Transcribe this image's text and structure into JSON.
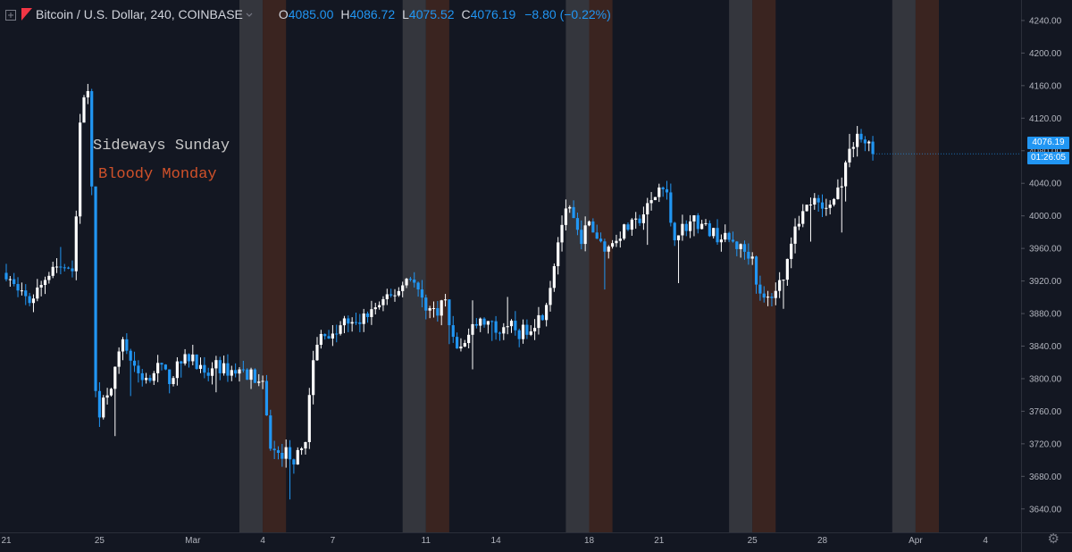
{
  "header": {
    "symbol": "Bitcoin / U.S. Dollar, 240, COINBASE",
    "open_label": "O",
    "open": "4085.00",
    "high_label": "H",
    "high": "4086.72",
    "low_label": "L",
    "low": "4075.52",
    "close_label": "C",
    "close": "4076.19",
    "change": "−8.80 (−0.22%)"
  },
  "price_badge": {
    "price": "4076.19",
    "countdown": "01:26:05"
  },
  "annotations": {
    "sunday": {
      "text": "Sideways Sunday",
      "color": "#c8c8c8"
    },
    "monday": {
      "text": "Bloody Monday",
      "color": "#d0512a"
    }
  },
  "colors": {
    "background": "#131722",
    "up_candle": "#ffffff",
    "down_candle": "#2196f3",
    "sunday_band": "#34363d",
    "monday_band": "#3a2420",
    "axis_text": "#b2b5be"
  },
  "chart_data": {
    "type": "candlestick",
    "title": "Bitcoin / U.S. Dollar, 240, COINBASE",
    "y_ticks": [
      3640,
      3680,
      3720,
      3760,
      3800,
      3840,
      3880,
      3920,
      3960,
      4000,
      4040,
      4080,
      4120,
      4160,
      4200,
      4240
    ],
    "y_tick_labels": [
      "3640.00",
      "3680.00",
      "3720.00",
      "3760.00",
      "3800.00",
      "3840.00",
      "3880.00",
      "3920.00",
      "3960.00",
      "4000.00",
      "4040.00",
      "4080.00",
      "4120.00",
      "4160.00",
      "4200.00",
      "4240.00"
    ],
    "ylim": [
      3620,
      4252
    ],
    "x_range_days": [
      0,
      45
    ],
    "x_ticks": [
      {
        "day": 0,
        "label": "21"
      },
      {
        "day": 4,
        "label": "25"
      },
      {
        "day": 8,
        "label": "Mar"
      },
      {
        "day": 11,
        "label": "4"
      },
      {
        "day": 14,
        "label": "7"
      },
      {
        "day": 18,
        "label": "11"
      },
      {
        "day": 21,
        "label": "14"
      },
      {
        "day": 25,
        "label": "18"
      },
      {
        "day": 28,
        "label": "21"
      },
      {
        "day": 32,
        "label": "25"
      },
      {
        "day": 35,
        "label": "28"
      },
      {
        "day": 39,
        "label": "Apr"
      },
      {
        "day": 42,
        "label": "4"
      }
    ],
    "weekend_bands": [
      {
        "sunday_start_day": 10,
        "monday_start_day": 11
      },
      {
        "sunday_start_day": 17,
        "monday_start_day": 18
      },
      {
        "sunday_start_day": 24,
        "monday_start_day": 25
      },
      {
        "sunday_start_day": 31,
        "monday_start_day": 32
      },
      {
        "sunday_start_day": 38,
        "monday_start_day": 39
      }
    ],
    "close_path": [
      [
        0.0,
        3930
      ],
      [
        0.5,
        3905
      ],
      [
        1.0,
        3895
      ],
      [
        1.5,
        3915
      ],
      [
        2.0,
        3940
      ],
      [
        2.5,
        3935
      ],
      [
        2.8,
        3925
      ],
      [
        3.0,
        4000
      ],
      [
        3.2,
        4130
      ],
      [
        3.4,
        4165
      ],
      [
        3.6,
        4150
      ],
      [
        3.8,
        3790
      ],
      [
        4.0,
        3760
      ],
      [
        4.3,
        3785
      ],
      [
        4.6,
        3800
      ],
      [
        5.0,
        3850
      ],
      [
        5.5,
        3810
      ],
      [
        6.0,
        3800
      ],
      [
        6.5,
        3815
      ],
      [
        7.0,
        3800
      ],
      [
        7.5,
        3820
      ],
      [
        8.0,
        3830
      ],
      [
        8.5,
        3800
      ],
      [
        9.0,
        3815
      ],
      [
        9.5,
        3810
      ],
      [
        10.0,
        3810
      ],
      [
        10.5,
        3805
      ],
      [
        11.0,
        3790
      ],
      [
        11.3,
        3720
      ],
      [
        11.6,
        3705
      ],
      [
        12.0,
        3710
      ],
      [
        12.4,
        3700
      ],
      [
        12.8,
        3720
      ],
      [
        13.2,
        3830
      ],
      [
        13.6,
        3860
      ],
      [
        14.0,
        3850
      ],
      [
        14.5,
        3870
      ],
      [
        15.0,
        3865
      ],
      [
        15.5,
        3880
      ],
      [
        16.0,
        3890
      ],
      [
        16.5,
        3900
      ],
      [
        17.0,
        3915
      ],
      [
        17.3,
        3930
      ],
      [
        17.6,
        3910
      ],
      [
        18.0,
        3890
      ],
      [
        18.4,
        3880
      ],
      [
        18.8,
        3900
      ],
      [
        19.1,
        3850
      ],
      [
        19.5,
        3835
      ],
      [
        20.0,
        3865
      ],
      [
        20.5,
        3870
      ],
      [
        21.0,
        3860
      ],
      [
        21.5,
        3870
      ],
      [
        22.0,
        3855
      ],
      [
        22.5,
        3865
      ],
      [
        23.0,
        3880
      ],
      [
        23.3,
        3910
      ],
      [
        23.6,
        3960
      ],
      [
        23.9,
        4000
      ],
      [
        24.2,
        4005
      ],
      [
        24.6,
        3970
      ],
      [
        25.0,
        3990
      ],
      [
        25.4,
        3970
      ],
      [
        25.8,
        3960
      ],
      [
        26.2,
        3975
      ],
      [
        26.6,
        3985
      ],
      [
        27.0,
        3990
      ],
      [
        27.5,
        4010
      ],
      [
        27.8,
        4020
      ],
      [
        28.0,
        4035
      ],
      [
        28.3,
        4030
      ],
      [
        28.6,
        3975
      ],
      [
        29.0,
        3985
      ],
      [
        29.5,
        3995
      ],
      [
        30.0,
        3985
      ],
      [
        30.5,
        3975
      ],
      [
        31.0,
        3970
      ],
      [
        31.5,
        3960
      ],
      [
        32.0,
        3950
      ],
      [
        32.3,
        3900
      ],
      [
        32.6,
        3895
      ],
      [
        33.0,
        3910
      ],
      [
        33.4,
        3930
      ],
      [
        33.8,
        3990
      ],
      [
        34.2,
        4005
      ],
      [
        34.6,
        4020
      ],
      [
        35.0,
        4005
      ],
      [
        35.4,
        4015
      ],
      [
        35.8,
        4040
      ],
      [
        36.2,
        4080
      ],
      [
        36.5,
        4100
      ],
      [
        36.8,
        4090
      ],
      [
        37.0,
        4085
      ],
      [
        37.2,
        4076
      ]
    ]
  }
}
